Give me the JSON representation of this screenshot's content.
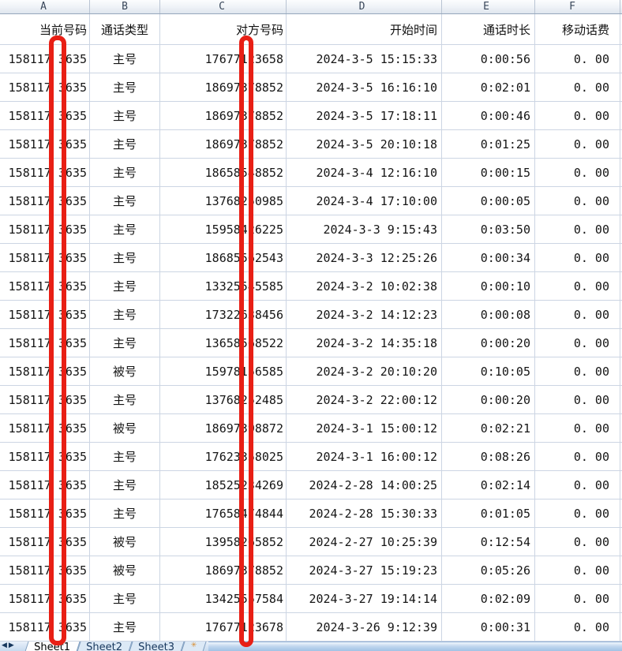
{
  "columns": [
    {
      "letter": "A",
      "header": "当前号码"
    },
    {
      "letter": "B",
      "header": "通话类型"
    },
    {
      "letter": "C",
      "header": "对方号码"
    },
    {
      "letter": "D",
      "header": "开始时间"
    },
    {
      "letter": "E",
      "header": "通话时长"
    },
    {
      "letter": "F",
      "header": "移动话费"
    }
  ],
  "rows": [
    {
      "a": "158117 3635",
      "b": "主号",
      "c": "17677123658",
      "d": "2024-3-5 15:15:33",
      "e": "0:00:56",
      "f": "0. 00"
    },
    {
      "a": "158117 3635",
      "b": "主号",
      "c": "18697378852",
      "d": "2024-3-5 16:16:10",
      "e": "0:02:01",
      "f": "0. 00"
    },
    {
      "a": "158117 3635",
      "b": "主号",
      "c": "18697378852",
      "d": "2024-3-5 17:18:11",
      "e": "0:00:46",
      "f": "0. 00"
    },
    {
      "a": "158117 3635",
      "b": "主号",
      "c": "18697378852",
      "d": "2024-3-5 20:10:18",
      "e": "0:01:25",
      "f": "0. 00"
    },
    {
      "a": "158117 3635",
      "b": "主号",
      "c": "18658548852",
      "d": "2024-3-4 12:16:10",
      "e": "0:00:15",
      "f": "0. 00"
    },
    {
      "a": "158117 3635",
      "b": "主号",
      "c": "13768250985",
      "d": "2024-3-4 17:10:00",
      "e": "0:00:05",
      "f": "0. 00"
    },
    {
      "a": "158117 3635",
      "b": "主号",
      "c": "15958426225",
      "d": "2024-3-3 9:15:43",
      "e": "0:03:50",
      "f": "0. 00"
    },
    {
      "a": "158117 3635",
      "b": "主号",
      "c": "18685562543",
      "d": "2024-3-3 12:25:26",
      "e": "0:00:34",
      "f": "0. 00"
    },
    {
      "a": "158117 3635",
      "b": "主号",
      "c": "13325545585",
      "d": "2024-3-2 10:02:38",
      "e": "0:00:10",
      "f": "0. 00"
    },
    {
      "a": "158117 3635",
      "b": "主号",
      "c": "17322638456",
      "d": "2024-3-2 14:12:23",
      "e": "0:00:08",
      "f": "0. 00"
    },
    {
      "a": "158117 3635",
      "b": "主号",
      "c": "13658568522",
      "d": "2024-3-2 14:35:18",
      "e": "0:00:20",
      "f": "0. 00"
    },
    {
      "a": "158117 3635",
      "b": "被号",
      "c": "15978156585",
      "d": "2024-3-2 20:10:20",
      "e": "0:10:05",
      "f": "0. 00"
    },
    {
      "a": "158117 3635",
      "b": "主号",
      "c": "13768252485",
      "d": "2024-3-2 22:00:12",
      "e": "0:00:20",
      "f": "0. 00"
    },
    {
      "a": "158117 3635",
      "b": "被号",
      "c": "18697398872",
      "d": "2024-3-1 15:00:12",
      "e": "0:02:21",
      "f": "0. 00"
    },
    {
      "a": "158117 3635",
      "b": "主号",
      "c": "17623358025",
      "d": "2024-3-1 16:00:12",
      "e": "0:08:26",
      "f": "0. 00"
    },
    {
      "a": "158117 3635",
      "b": "主号",
      "c": "18525234269",
      "d": "2024-2-28 14:00:25",
      "e": "0:02:14",
      "f": "0. 00"
    },
    {
      "a": "158117 3635",
      "b": "主号",
      "c": "17658474844",
      "d": "2024-2-28 15:30:33",
      "e": "0:01:05",
      "f": "0. 00"
    },
    {
      "a": "158117 3635",
      "b": "被号",
      "c": "13958265852",
      "d": "2024-2-27 10:25:39",
      "e": "0:12:54",
      "f": "0. 00"
    },
    {
      "a": "158117 3635",
      "b": "被号",
      "c": "18697378852",
      "d": "2024-3-27 15:19:23",
      "e": "0:05:26",
      "f": "0. 00"
    },
    {
      "a": "158117 3635",
      "b": "主号",
      "c": "13425557584",
      "d": "2024-3-27 19:14:14",
      "e": "0:02:09",
      "f": "0. 00"
    },
    {
      "a": "158117 3635",
      "b": "主号",
      "c": "17677123678",
      "d": "2024-3-26 9:12:39",
      "e": "0:00:31",
      "f": "0. 00"
    }
  ],
  "sheet_tabs": {
    "tabs": [
      "Sheet1",
      "Sheet2",
      "Sheet3"
    ],
    "active": "Sheet1",
    "nav_prev": "◀",
    "nav_next": "▶",
    "insert_icon": "✳"
  },
  "annotations": {
    "redaction_color": "#e81f15",
    "redacted_columns": [
      "A",
      "C"
    ]
  }
}
